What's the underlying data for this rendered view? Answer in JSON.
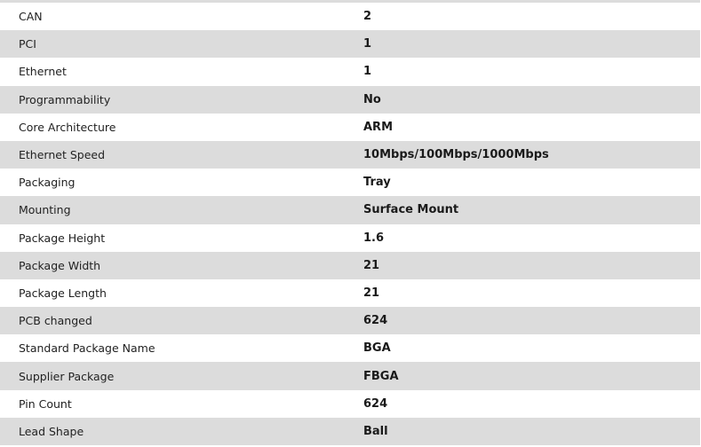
{
  "specs": [
    {
      "label": "CAN",
      "value": "2"
    },
    {
      "label": "PCI",
      "value": "1"
    },
    {
      "label": "Ethernet",
      "value": "1"
    },
    {
      "label": "Programmability",
      "value": "No"
    },
    {
      "label": "Core Architecture",
      "value": "ARM"
    },
    {
      "label": "Ethernet Speed",
      "value": "10Mbps/100Mbps/1000Mbps"
    },
    {
      "label": "Packaging",
      "value": "Tray"
    },
    {
      "label": "Mounting",
      "value": "Surface Mount"
    },
    {
      "label": "Package Height",
      "value": "1.6"
    },
    {
      "label": "Package Width",
      "value": "21"
    },
    {
      "label": "Package Length",
      "value": "21"
    },
    {
      "label": "PCB changed",
      "value": "624"
    },
    {
      "label": "Standard Package Name",
      "value": "BGA"
    },
    {
      "label": "Supplier Package",
      "value": "FBGA"
    },
    {
      "label": "Pin Count",
      "value": "624"
    },
    {
      "label": "Lead Shape",
      "value": "Ball"
    }
  ]
}
